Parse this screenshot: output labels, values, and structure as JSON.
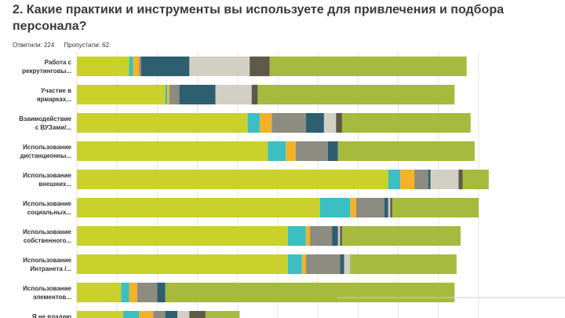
{
  "question": {
    "title": "2. Какие практики и инструменты вы используете для привлечения и подбора персонала?"
  },
  "stats": {
    "answered": "Ответили: 224",
    "skipped": "Пропустили: 62"
  },
  "colors": {
    "lime": "#c9d12a",
    "teal": "#3bbfc3",
    "orange": "#f4b227",
    "grey": "#8c8c81",
    "navy": "#2d5f70",
    "light": "#d2d0c4",
    "olive": "#5e5a47",
    "green": "#a6bb3d",
    "grid": "#e3e3e3",
    "bottom_line": "#cccccc"
  },
  "chart_data": {
    "type": "bar",
    "orientation": "horizontal",
    "stacked": true,
    "xlim": [
      0,
      100
    ],
    "grid": true,
    "categories": [
      [
        "Работа с",
        "рекрутинговы..."
      ],
      [
        "Участие в",
        "ярмарках..."
      ],
      [
        "Взаимодействие",
        "с ВУЗами/..."
      ],
      [
        "Использование",
        "дистанционны..."
      ],
      [
        "Использование",
        "внешних..."
      ],
      [
        "Использование",
        "социальных..."
      ],
      [
        "Использование",
        "собственного..."
      ],
      [
        "Использование",
        "Интранета /..."
      ],
      [
        "Использование",
        "элементов..."
      ],
      [
        "Я не владею",
        ""
      ]
    ],
    "segment_colors": [
      "lime",
      "teal",
      "orange",
      "grey",
      "navy",
      "light",
      "olive",
      "green"
    ],
    "rows": [
      [
        13,
        1,
        1.5,
        0.5,
        12,
        15,
        5,
        49
      ],
      [
        22,
        0.5,
        0.5,
        2.5,
        9,
        9,
        1.5,
        49
      ],
      [
        42.5,
        3,
        3,
        8.5,
        4.5,
        3,
        1.5,
        32
      ],
      [
        47.5,
        4.5,
        2.5,
        8,
        2.5,
        0,
        0,
        34
      ],
      [
        77.5,
        3,
        3.5,
        3.5,
        0.5,
        7,
        1,
        6.5
      ],
      [
        60.5,
        7.5,
        1.5,
        7,
        1,
        0.5,
        0.5,
        21.5
      ],
      [
        52.5,
        4.5,
        1,
        5.5,
        1.5,
        0.5,
        0.5,
        29.5
      ],
      [
        52.5,
        3.5,
        1,
        8.5,
        1,
        1.5,
        0,
        26.5
      ],
      [
        11,
        2,
        2,
        5,
        2,
        0,
        0,
        72
      ],
      [
        11.5,
        4,
        3.5,
        3,
        3,
        3,
        4,
        8.5
      ]
    ]
  }
}
